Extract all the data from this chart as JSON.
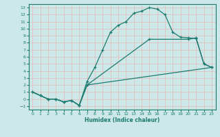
{
  "title": "",
  "xlabel": "Humidex (Indice chaleur)",
  "background_color": "#cce8e8",
  "line_color": "#1a7a6e",
  "grid_color": "#b0d4d4",
  "xlim": [
    -0.5,
    23.5
  ],
  "ylim": [
    -1.5,
    13.5
  ],
  "xticks": [
    0,
    1,
    2,
    3,
    4,
    5,
    6,
    7,
    8,
    9,
    10,
    11,
    12,
    13,
    14,
    15,
    16,
    17,
    18,
    19,
    20,
    21,
    22,
    23
  ],
  "yticks": [
    -1,
    0,
    1,
    2,
    3,
    4,
    5,
    6,
    7,
    8,
    9,
    10,
    11,
    12,
    13
  ],
  "line1_x": [
    0,
    1,
    2,
    3,
    4,
    5,
    6,
    7,
    8,
    9,
    10,
    11,
    12,
    13,
    14,
    15,
    16,
    17,
    18,
    19,
    20,
    21,
    22,
    23
  ],
  "line1_y": [
    1,
    0.5,
    0,
    0,
    -0.4,
    -0.2,
    -0.9,
    2.5,
    4.5,
    7.0,
    9.5,
    10.5,
    11.0,
    12.2,
    12.5,
    13.0,
    12.8,
    12.0,
    9.5,
    8.8,
    8.7,
    8.6,
    5.0,
    4.5
  ],
  "line2_x": [
    0,
    1,
    2,
    3,
    4,
    5,
    6,
    7,
    15,
    20,
    21,
    22,
    23
  ],
  "line2_y": [
    1,
    0.5,
    0,
    0,
    -0.4,
    -0.2,
    -0.9,
    2.0,
    8.5,
    8.5,
    8.7,
    5.0,
    4.5
  ],
  "line3_x": [
    0,
    1,
    2,
    3,
    4,
    5,
    6,
    7,
    23
  ],
  "line3_y": [
    1,
    0.5,
    0,
    0,
    -0.4,
    -0.2,
    -0.9,
    2.0,
    4.5
  ]
}
